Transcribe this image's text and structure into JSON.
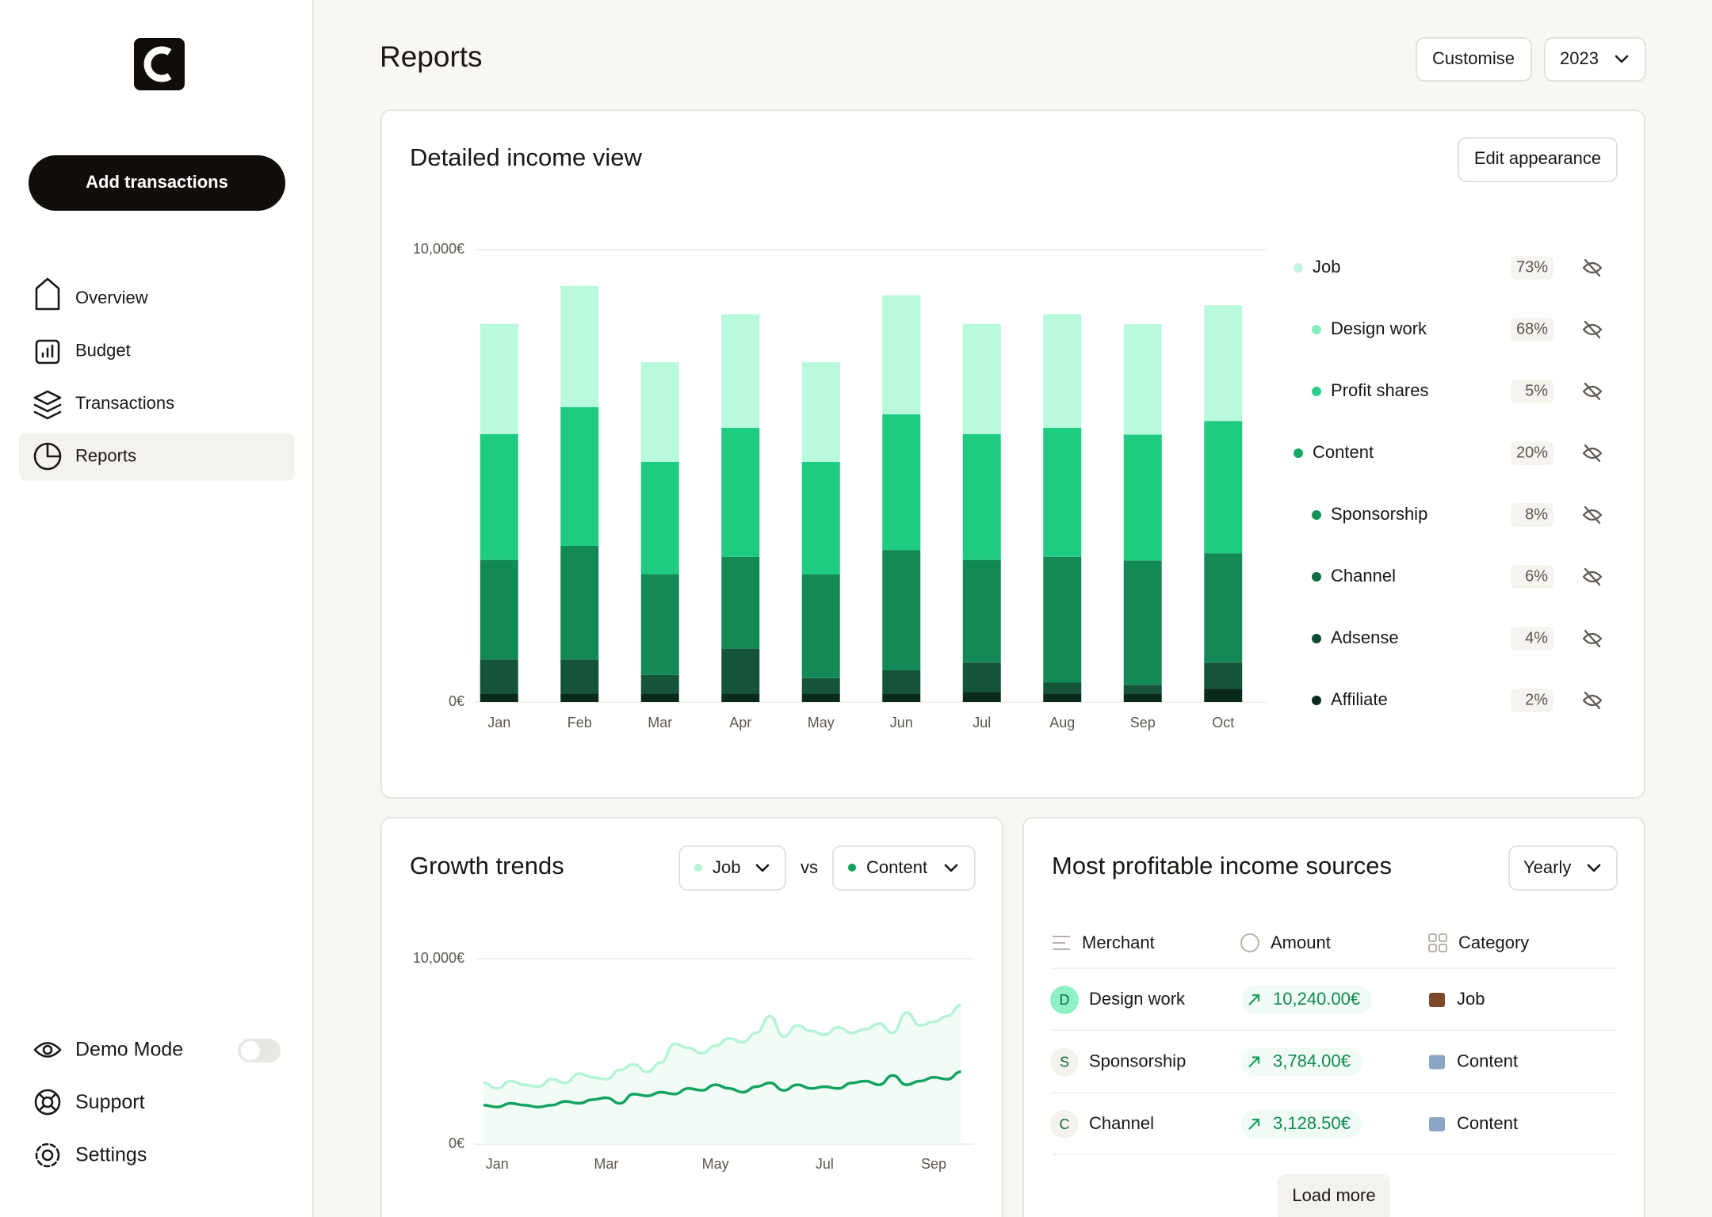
{
  "sidebar": {
    "primary_action": "Add transactions",
    "nav": [
      "Overview",
      "Budget",
      "Transactions",
      "Reports"
    ],
    "active_nav": 3,
    "footer_nav": [
      "Demo Mode",
      "Support",
      "Settings"
    ],
    "demo_mode": false
  },
  "header": {
    "title": "Reports",
    "customise": "Customise",
    "year": "2023"
  },
  "chart_data": [
    {
      "type": "bar",
      "stacked": true,
      "title": "Detailed income view",
      "action": "Edit appearance",
      "categories": [
        "Jan",
        "Feb",
        "Mar",
        "Apr",
        "May",
        "Jun",
        "Jul",
        "Aug",
        "Sep",
        "Oct"
      ],
      "series": [
        {
          "color": "#0a2b1c",
          "values": [
            190,
            190,
            190,
            190,
            190,
            190,
            220,
            190,
            190,
            290
          ]
        },
        {
          "color": "#14553a",
          "values": [
            750,
            750,
            410,
            990,
            340,
            510,
            650,
            240,
            190,
            580
          ]
        },
        {
          "color": "#138a55",
          "values": [
            2200,
            2510,
            2220,
            2030,
            2290,
            2660,
            2270,
            2780,
            2750,
            2420
          ]
        },
        {
          "color": "#1ecb80",
          "values": [
            2780,
            3070,
            2490,
            2850,
            2490,
            3000,
            2780,
            2850,
            2780,
            2920
          ]
        },
        {
          "color": "#b9f9dc",
          "values": [
            2440,
            2680,
            2200,
            2510,
            2200,
            2630,
            2440,
            2510,
            2440,
            2560
          ]
        }
      ],
      "ylim": [
        0,
        10000
      ],
      "yticks": [
        {
          "value": 0,
          "label": "0€"
        },
        {
          "value": 10000,
          "label": "10,000€"
        }
      ],
      "grid": true,
      "legend": [
        {
          "name": "Job",
          "share": "73%",
          "color": "#c2f5df",
          "level": 0
        },
        {
          "name": "Design work",
          "share": "68%",
          "color": "#86eec0",
          "level": 1
        },
        {
          "name": "Profit shares",
          "share": "5%",
          "color": "#29d08a",
          "level": 1
        },
        {
          "name": "Content",
          "share": "20%",
          "color": "#17a964",
          "level": 0
        },
        {
          "name": "Sponsorship",
          "share": "8%",
          "color": "#139353",
          "level": 1
        },
        {
          "name": "Channel",
          "share": "6%",
          "color": "#0f6b40",
          "level": 1
        },
        {
          "name": "Adsense",
          "share": "4%",
          "color": "#0b4a2d",
          "level": 1
        },
        {
          "name": "Affiliate",
          "share": "2%",
          "color": "#072e1c",
          "level": 1
        }
      ]
    },
    {
      "type": "line",
      "title": "Growth trends",
      "comparison_label": "vs",
      "x": [
        -0.25,
        0,
        0.25,
        0.5,
        0.75,
        1,
        1.25,
        1.5,
        1.75,
        2,
        2.25,
        2.5,
        2.75,
        3,
        3.25,
        3.5,
        3.75,
        4,
        4.25,
        4.5,
        4.75,
        5,
        5.25,
        5.5,
        5.75,
        6,
        6.25,
        6.5,
        6.75,
        7,
        7.25,
        7.5,
        7.75,
        8,
        8.25,
        8.5
      ],
      "series": [
        {
          "name": "Job",
          "color": "#b4f3d6",
          "values": [
            3300,
            3000,
            3400,
            3200,
            3100,
            3500,
            3300,
            3800,
            3600,
            3500,
            4000,
            4300,
            3900,
            4400,
            5400,
            5200,
            4900,
            5300,
            5700,
            5500,
            6000,
            6900,
            5800,
            6400,
            6100,
            5900,
            6300,
            6000,
            6200,
            6500,
            6000,
            7100,
            6400,
            6600,
            6900,
            7500
          ]
        },
        {
          "name": "Content",
          "color": "#12a35e",
          "values": [
            2100,
            2000,
            2200,
            2100,
            2000,
            2100,
            2300,
            2200,
            2400,
            2500,
            2200,
            2700,
            2600,
            2800,
            2700,
            3000,
            2900,
            3200,
            3000,
            2800,
            3100,
            3300,
            2900,
            3200,
            3000,
            3100,
            3000,
            3300,
            3400,
            3200,
            3700,
            3200,
            3400,
            3600,
            3500,
            3900
          ]
        }
      ],
      "xlim": [
        -0.41,
        8.74
      ],
      "xticks": [
        {
          "value": 0,
          "label": "Jan"
        },
        {
          "value": 2,
          "label": "Mar"
        },
        {
          "value": 4,
          "label": "May"
        },
        {
          "value": 6,
          "label": "Jul"
        },
        {
          "value": 8,
          "label": "Sep"
        }
      ],
      "ylim": [
        0,
        10000
      ],
      "yticks": [
        {
          "value": 0,
          "label": "0€"
        },
        {
          "value": 10000,
          "label": "10,000€"
        }
      ],
      "grid": true
    }
  ],
  "sources": {
    "title": "Most profitable income sources",
    "filter": "Yearly",
    "columns": [
      "Merchant",
      "Amount",
      "Category"
    ],
    "rows": [
      {
        "avatar": "D",
        "merchant": "Design work",
        "amount": "10,240.00€",
        "category": "Job"
      },
      {
        "avatar": "S",
        "merchant": "Sponsorship",
        "amount": "3,784.00€",
        "category": "Content"
      },
      {
        "avatar": "C",
        "merchant": "Channel",
        "amount": "3,128.50€",
        "category": "Content"
      }
    ],
    "more": "Load more"
  }
}
